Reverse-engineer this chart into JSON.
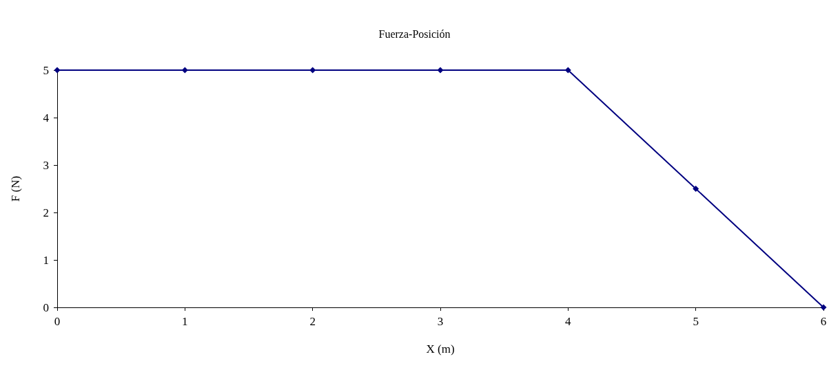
{
  "chart_data": {
    "type": "line",
    "title": "Fuerza-Posición",
    "xlabel": "X (m)",
    "ylabel": "F (N)",
    "x": [
      0,
      1,
      2,
      3,
      4,
      5,
      6
    ],
    "series": [
      {
        "color": "#000080",
        "values": [
          5,
          5,
          5,
          5,
          5,
          2.5,
          0
        ]
      }
    ],
    "xlim": [
      0,
      6
    ],
    "xticks": [
      0,
      1,
      2,
      3,
      4,
      5,
      6
    ],
    "ylim": [
      0,
      5
    ],
    "yticks": [
      0,
      1,
      2,
      3,
      4,
      5
    ],
    "grid": false,
    "marker": "diamond",
    "line_style": "solid"
  }
}
